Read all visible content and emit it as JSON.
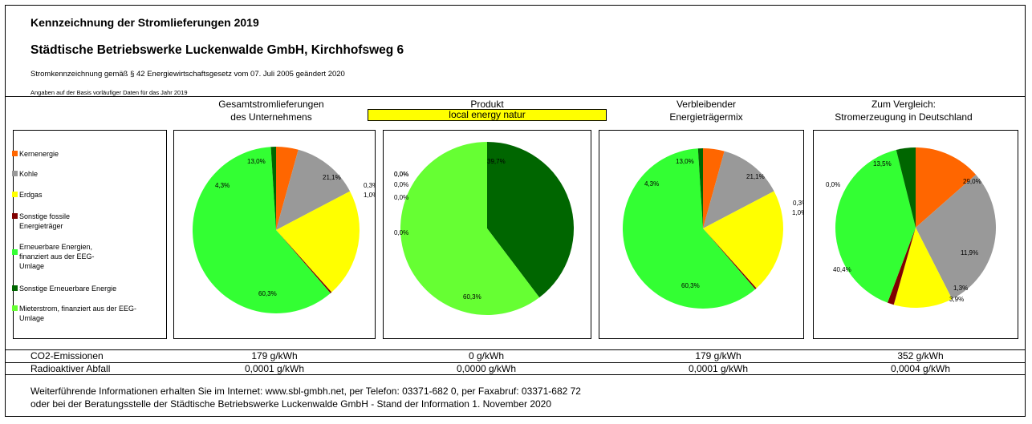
{
  "header": {
    "title": "Kennzeichnung der Stromlieferungen 2019",
    "company": "Städtische Betriebswerke Luckenwalde GmbH, Kirchhofsweg 6",
    "legal": "Stromkennzeichnung gemäß § 42 Energiewirtschaftsgesetz vom 07. Juli 2005 geändert 2020",
    "basis": "Angaben auf der Basis vorläufiger Daten für das Jahr 2019"
  },
  "panels": {
    "total_title": "Gesamtstromlieferungen\ndes Unternehmens",
    "product_title": "Produkt",
    "product_name": "local energy natur",
    "remaining_title": "Verbleibender\nEnergieträgermix",
    "germany_title": "Zum Vergleich:\nStromerzeugung in Deutschland"
  },
  "legend": [
    {
      "label": "Kernenergie",
      "color": "#ff6600"
    },
    {
      "label": "Kohle",
      "color": "#999999"
    },
    {
      "label": "Erdgas",
      "color": "#ffff00"
    },
    {
      "label": "Sonstige fossile Energieträger",
      "color": "#800000"
    },
    {
      "label": "Erneuerbare Energien, finanziert aus der EEG-Umlage",
      "color": "#33ff33"
    },
    {
      "label": "Sonstige Erneuerbare Energie",
      "color": "#006600"
    },
    {
      "label": "Mieterstrom, finanziert aus der EEG-Umlage",
      "color": "#66ff33"
    }
  ],
  "chart_data": [
    {
      "type": "pie",
      "title": "Gesamtstromlieferungen des Unternehmens",
      "categories": [
        "Kernenergie",
        "Kohle",
        "Erdgas",
        "Sonstige fossile Energieträger",
        "Erneuerbare Energien, finanziert aus der EEG-Umlage",
        "Sonstige Erneuerbare Energie",
        "Mieterstrom, finanziert aus der EEG-Umlage"
      ],
      "values": [
        4.3,
        13.0,
        21.1,
        0.3,
        60.3,
        1.0,
        0.0
      ],
      "labels": [
        "4,3%",
        "13,0%",
        "21,1%",
        "0,3%",
        "60,3%",
        "1,0%",
        ""
      ]
    },
    {
      "type": "pie",
      "title": "local energy natur",
      "categories": [
        "Kernenergie",
        "Kohle",
        "Erdgas",
        "Sonstige fossile Energieträger",
        "Erneuerbare Energien, finanziert aus der EEG-Umlage",
        "Sonstige Erneuerbare Energie",
        "Mieterstrom, finanziert aus der EEG-Umlage"
      ],
      "values": [
        0.0,
        0.0,
        0.0,
        0.0,
        0.0,
        39.7,
        60.3
      ],
      "labels": [
        "0,0%",
        "0,0%",
        "0,0%",
        "0,0%",
        "0,0%",
        "39,7%",
        "60,3%"
      ]
    },
    {
      "type": "pie",
      "title": "Verbleibender Energieträgermix",
      "categories": [
        "Kernenergie",
        "Kohle",
        "Erdgas",
        "Sonstige fossile Energieträger",
        "Erneuerbare Energien, finanziert aus der EEG-Umlage",
        "Sonstige Erneuerbare Energie"
      ],
      "values": [
        4.3,
        13.0,
        21.1,
        0.3,
        60.3,
        1.0
      ],
      "labels": [
        "4,3%",
        "13,0%",
        "21,1%",
        "0,3%",
        "60,3%",
        "1,0%"
      ]
    },
    {
      "type": "pie",
      "title": "Stromerzeugung in Deutschland",
      "categories": [
        "Kernenergie",
        "Kohle",
        "Erdgas",
        "Sonstige fossile Energieträger",
        "Erneuerbare Energien, finanziert aus der EEG-Umlage",
        "Sonstige Erneuerbare Energie"
      ],
      "values": [
        13.5,
        29.0,
        11.9,
        1.3,
        40.4,
        3.9
      ],
      "labels": [
        "13,5%",
        "29,0%",
        "11,9%",
        "1,3%",
        "40,4%",
        "3,9%"
      ],
      "extra_label": "0,0%"
    }
  ],
  "rows": {
    "co2_label": "CO2-Emissionen",
    "co2": [
      "179 g/kWh",
      "0 g/kWh",
      "179 g/kWh",
      "352 g/kWh"
    ],
    "waste_label": "Radioaktiver Abfall",
    "waste": [
      "0,0001 g/kWh",
      "0,0000 g/kWh",
      "0,0001 g/kWh",
      "0,0004 g/kWh"
    ]
  },
  "footer": {
    "line1": "Weiterführende Informationen erhalten Sie im Internet: www.sbl-gmbh.net, per Telefon: 03371-682 0, per Faxabruf: 03371-682 72",
    "line2": "oder bei der Beratungsstelle der Städtische Betriebswerke Luckenwalde GmbH - Stand der Information 1. November 2020"
  }
}
